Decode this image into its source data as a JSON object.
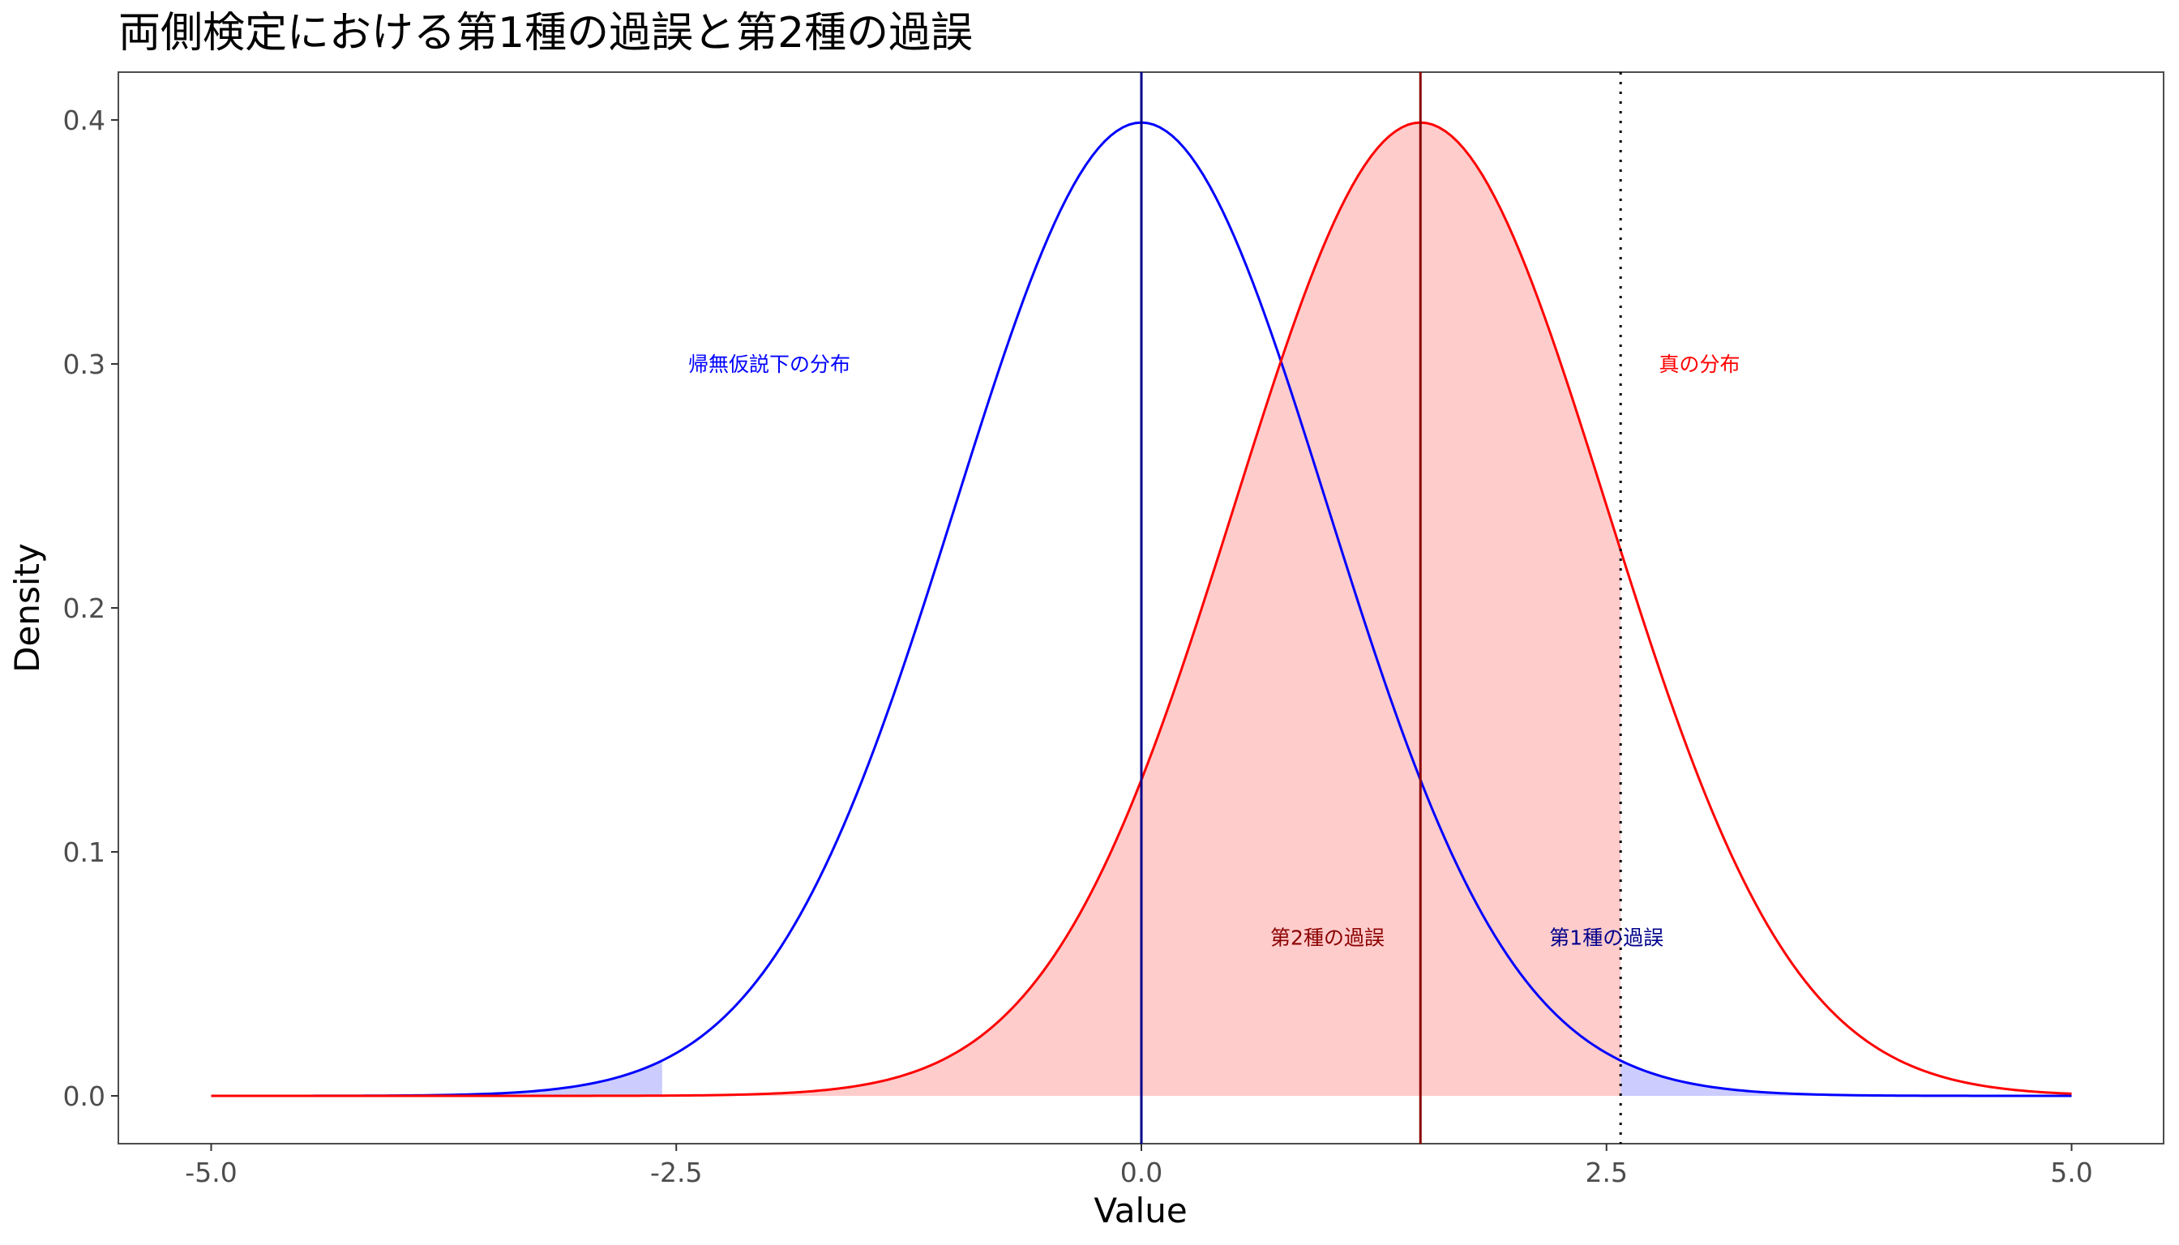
{
  "chart_data": {
    "type": "area",
    "title": "両側検定における第1種の過誤と第2種の過誤",
    "xlabel": "Value",
    "ylabel": "Density",
    "xlim": [
      -5.2,
      5.5
    ],
    "ylim": [
      -0.02,
      0.42
    ],
    "x_ticks": [
      -5.0,
      -2.5,
      0.0,
      2.5,
      5.0
    ],
    "x_tick_labels": [
      "-5.0",
      "-2.5",
      "0.0",
      "2.5",
      "5.0"
    ],
    "y_ticks": [
      0.0,
      0.1,
      0.2,
      0.3,
      0.4
    ],
    "y_tick_labels": [
      "0.0",
      "0.1",
      "0.2",
      "0.3",
      "0.4"
    ],
    "grid": false,
    "x_range": [
      -5,
      5
    ],
    "series": [
      {
        "name": "帰無仮説下の分布",
        "distribution": "normal",
        "mean": 0,
        "sd": 1,
        "color": "#0000ff"
      },
      {
        "name": "真の分布",
        "distribution": "normal",
        "mean": 1.5,
        "sd": 1,
        "color": "#ff0000"
      }
    ],
    "critical_values": [
      -2.576,
      2.576
    ],
    "vlines": [
      {
        "x": 0,
        "color": "#00008b",
        "style": "solid"
      },
      {
        "x": 1.5,
        "color": "#8b0000",
        "style": "solid"
      },
      {
        "x": 2.576,
        "color": "#000000",
        "style": "dotted"
      }
    ],
    "shaded_regions": [
      {
        "name": "type1-error",
        "under": "帰無仮説下の分布",
        "ranges": [
          [
            -5,
            -2.576
          ],
          [
            2.576,
            5
          ]
        ],
        "color": "#ccccff"
      },
      {
        "name": "type2-error",
        "under": "真の分布",
        "ranges": [
          [
            -2.576,
            2.576
          ]
        ],
        "color": "#ffcccc"
      }
    ],
    "annotations": [
      {
        "text": "帰無仮説下の分布",
        "x": -2.0,
        "y": 0.3,
        "color": "#0000ff"
      },
      {
        "text": "真の分布",
        "x": 3.0,
        "y": 0.3,
        "color": "#ff0000"
      },
      {
        "text": "第2種の過誤",
        "x": 1.0,
        "y": 0.065,
        "color": "#8b0000"
      },
      {
        "text": "第1種の過誤",
        "x": 2.5,
        "y": 0.065,
        "color": "#00008b"
      }
    ]
  }
}
